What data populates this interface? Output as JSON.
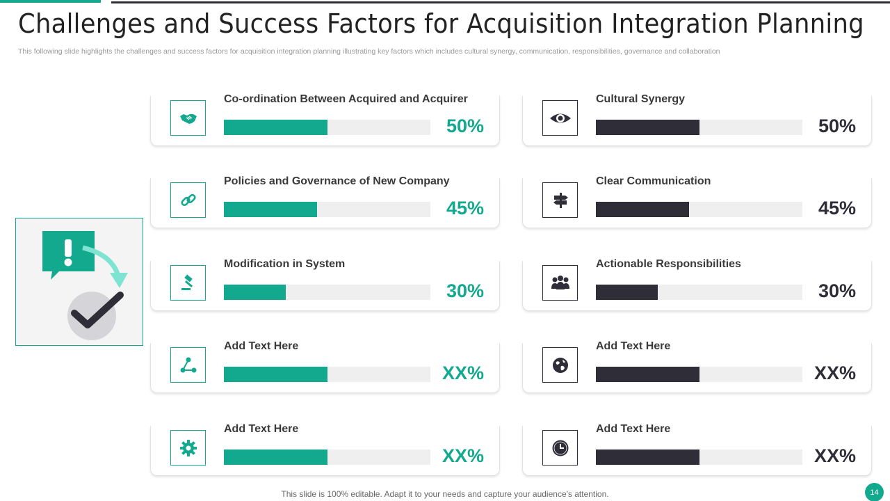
{
  "header": {
    "title": "Challenges and Success Factors for Acquisition Integration Planning",
    "subtitle": "This following slide highlights the challenges and success factors for acquisition integration planning illustrating key factors which includes cultural synergy, communication, responsibilities, governance and collaboration"
  },
  "colors": {
    "accent": "#13a98f",
    "dark": "#2e2d38",
    "track": "#efefef"
  },
  "challenges": [
    {
      "label": "Co-ordination Between  Acquired and Acquirer",
      "percent": "50%",
      "level": 0.5,
      "icon": "handshake-icon"
    },
    {
      "label": "Policies and Governance of New Company",
      "percent": "45%",
      "level": 0.45,
      "icon": "link-icon"
    },
    {
      "label": "Modification in System",
      "percent": "30%",
      "level": 0.3,
      "icon": "gavel-icon"
    },
    {
      "label": "Add Text Here",
      "percent": "XX%",
      "level": 0.5,
      "icon": "network-icon"
    },
    {
      "label": "Add Text Here",
      "percent": "XX%",
      "level": 0.5,
      "icon": "gear-icon"
    }
  ],
  "success_factors": [
    {
      "label": "Cultural Synergy",
      "percent": "50%",
      "level": 0.5,
      "icon": "eye-icon"
    },
    {
      "label": "Clear Communication",
      "percent": "45%",
      "level": 0.45,
      "icon": "signpost-icon"
    },
    {
      "label": "Actionable Responsibilities",
      "percent": "30%",
      "level": 0.3,
      "icon": "team-icon"
    },
    {
      "label": "Add Text Here",
      "percent": "XX%",
      "level": 0.5,
      "icon": "globe-icon"
    },
    {
      "label": "Add Text Here",
      "percent": "XX%",
      "level": 0.5,
      "icon": "clock-icon"
    }
  ],
  "footer": {
    "note": "This slide is 100% editable. Adapt it to your needs and capture your audience's attention.",
    "page_number": "14"
  }
}
